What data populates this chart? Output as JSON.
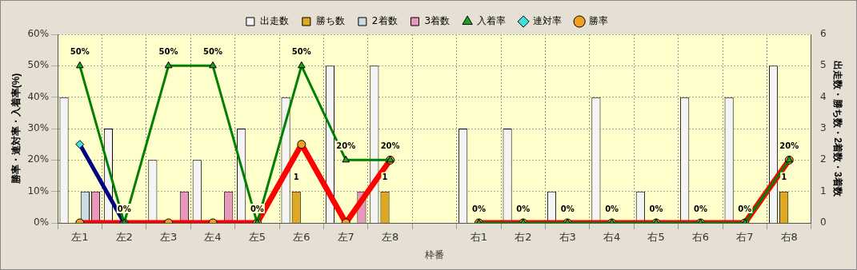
{
  "chart_data": {
    "type": "bar",
    "xlabel": "枠番",
    "ylabel": "勝率・連対率・入着率(%)",
    "y2label": "出走数・勝ち数・2着数・3着数",
    "categories": [
      "左1",
      "左2",
      "左3",
      "左4",
      "左5",
      "左6",
      "左7",
      "左8",
      null,
      "右1",
      "右2",
      "右3",
      "右4",
      "右5",
      "右6",
      "右7",
      "右8"
    ],
    "series": [
      {
        "name": "出走数",
        "axis": "y2",
        "color": "#f4f4f4",
        "values": [
          4,
          3,
          2,
          2,
          3,
          4,
          5,
          5,
          null,
          3,
          3,
          1,
          4,
          1,
          4,
          4,
          5
        ]
      },
      {
        "name": "勝ち数",
        "axis": "y2",
        "color": "#e0a820",
        "values": [
          0,
          0,
          0,
          0,
          0,
          1,
          0,
          1,
          null,
          0,
          0,
          0,
          0,
          0,
          0,
          0,
          1
        ],
        "value_labels": [
          null,
          null,
          null,
          null,
          null,
          "1",
          null,
          "1",
          null,
          null,
          null,
          null,
          null,
          null,
          null,
          null,
          "1"
        ]
      },
      {
        "name": "2着数",
        "axis": "y2",
        "color": "#c8dce4",
        "values": [
          1,
          0,
          0,
          0,
          0,
          0,
          0,
          0,
          null,
          0,
          0,
          0,
          0,
          0,
          0,
          0,
          0
        ]
      },
      {
        "name": "3着数",
        "axis": "y2",
        "color": "#e898bc",
        "values": [
          1,
          0,
          1,
          1,
          0,
          0,
          1,
          0,
          null,
          0,
          0,
          0,
          0,
          0,
          0,
          0,
          0
        ]
      },
      {
        "name": "入着率",
        "type": "line",
        "color": "#008000",
        "marker": "triangle",
        "values": [
          50,
          0,
          50,
          50,
          0,
          50,
          20,
          20,
          null,
          0,
          0,
          0,
          0,
          0,
          0,
          0,
          20
        ],
        "value_labels": [
          "50%",
          "0%",
          "50%",
          "50%",
          "0%",
          "50%",
          "20%",
          "20%",
          null,
          "0%",
          "0%",
          "0%",
          "0%",
          "0%",
          "0%",
          "0%",
          "20%"
        ]
      },
      {
        "name": "連対率",
        "type": "line",
        "color": "#000080",
        "marker": "diamond",
        "values": [
          25,
          0,
          null,
          null,
          null,
          null,
          null,
          null,
          null,
          null,
          null,
          null,
          null,
          null,
          null,
          null,
          null
        ]
      },
      {
        "name": "勝率",
        "type": "line",
        "color": "#ff0000",
        "marker": "circle",
        "values": [
          0,
          0,
          0,
          0,
          0,
          25,
          0,
          20,
          null,
          0,
          0,
          0,
          0,
          0,
          0,
          0,
          20
        ]
      }
    ],
    "ylim": [
      0,
      60
    ],
    "yticks": [
      {
        "value": 0,
        "label": "0%"
      },
      {
        "value": 10,
        "label": "10%"
      },
      {
        "value": 20,
        "label": "20%"
      },
      {
        "value": 30,
        "label": "30%"
      },
      {
        "value": 40,
        "label": "40%"
      },
      {
        "value": 50,
        "label": "50%"
      },
      {
        "value": 60,
        "label": "60%"
      }
    ],
    "y2lim": [
      0,
      6
    ],
    "y2ticks": [
      0,
      1,
      2,
      3,
      4,
      5,
      6
    ],
    "grid": true,
    "legend": "top"
  }
}
